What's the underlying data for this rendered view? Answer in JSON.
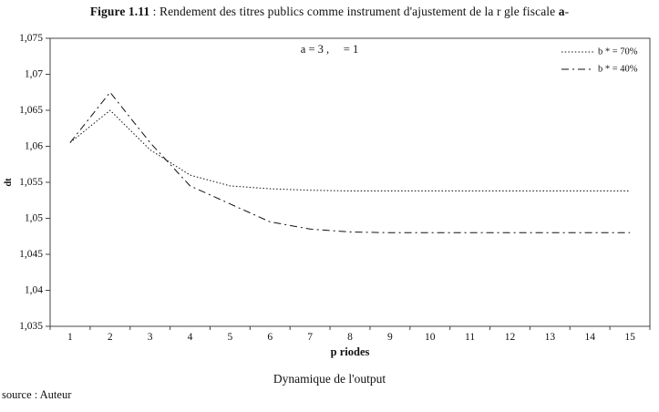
{
  "figure": {
    "title_bold": "Figure 1.11",
    "title_text": " : Rendement des titres publics comme instrument d'ajustement de la r gle fiscale ",
    "title_alpha": "a",
    "title_dash": "-",
    "caption": "Dynamique de l'output",
    "source": "source : Auteur"
  },
  "chart_data": {
    "type": "line",
    "annotation": "a = 3 ,     = 1",
    "xlabel": "p riodes",
    "ylabel": "dt",
    "x": [
      1,
      2,
      3,
      4,
      5,
      6,
      7,
      8,
      9,
      10,
      11,
      12,
      13,
      14,
      15
    ],
    "series": [
      {
        "name": "b * = 70%",
        "style": "dotted",
        "values": [
          1.0605,
          1.065,
          1.0595,
          1.056,
          1.0545,
          1.0541,
          1.0539,
          1.0538,
          1.0538,
          1.0538,
          1.0538,
          1.0538,
          1.0538,
          1.0538,
          1.0538
        ]
      },
      {
        "name": "b * = 40%",
        "style": "dashdot",
        "values": [
          1.0605,
          1.0675,
          1.0605,
          1.0545,
          1.052,
          1.0495,
          1.0485,
          1.0481,
          1.048,
          1.048,
          1.048,
          1.048,
          1.048,
          1.048,
          1.048
        ]
      }
    ],
    "ylim": [
      1.035,
      1.075
    ],
    "ytick_values": [
      1.075,
      1.07,
      1.065,
      1.06,
      1.055,
      1.05,
      1.045,
      1.04,
      1.035
    ],
    "ytick_labels": [
      "1,075",
      "1,07",
      "1,065",
      "1,06",
      "1,055",
      "1,05",
      "1,045",
      "1,04",
      "1,035"
    ],
    "xtick_labels": [
      "1",
      "2",
      "3",
      "4",
      "5",
      "6",
      "7",
      "8",
      "9",
      "10",
      "11",
      "12",
      "13",
      "14",
      "15"
    ],
    "grid": false,
    "legend_position": "top-right",
    "line_color": "#111111",
    "axis_color": "#444444"
  }
}
